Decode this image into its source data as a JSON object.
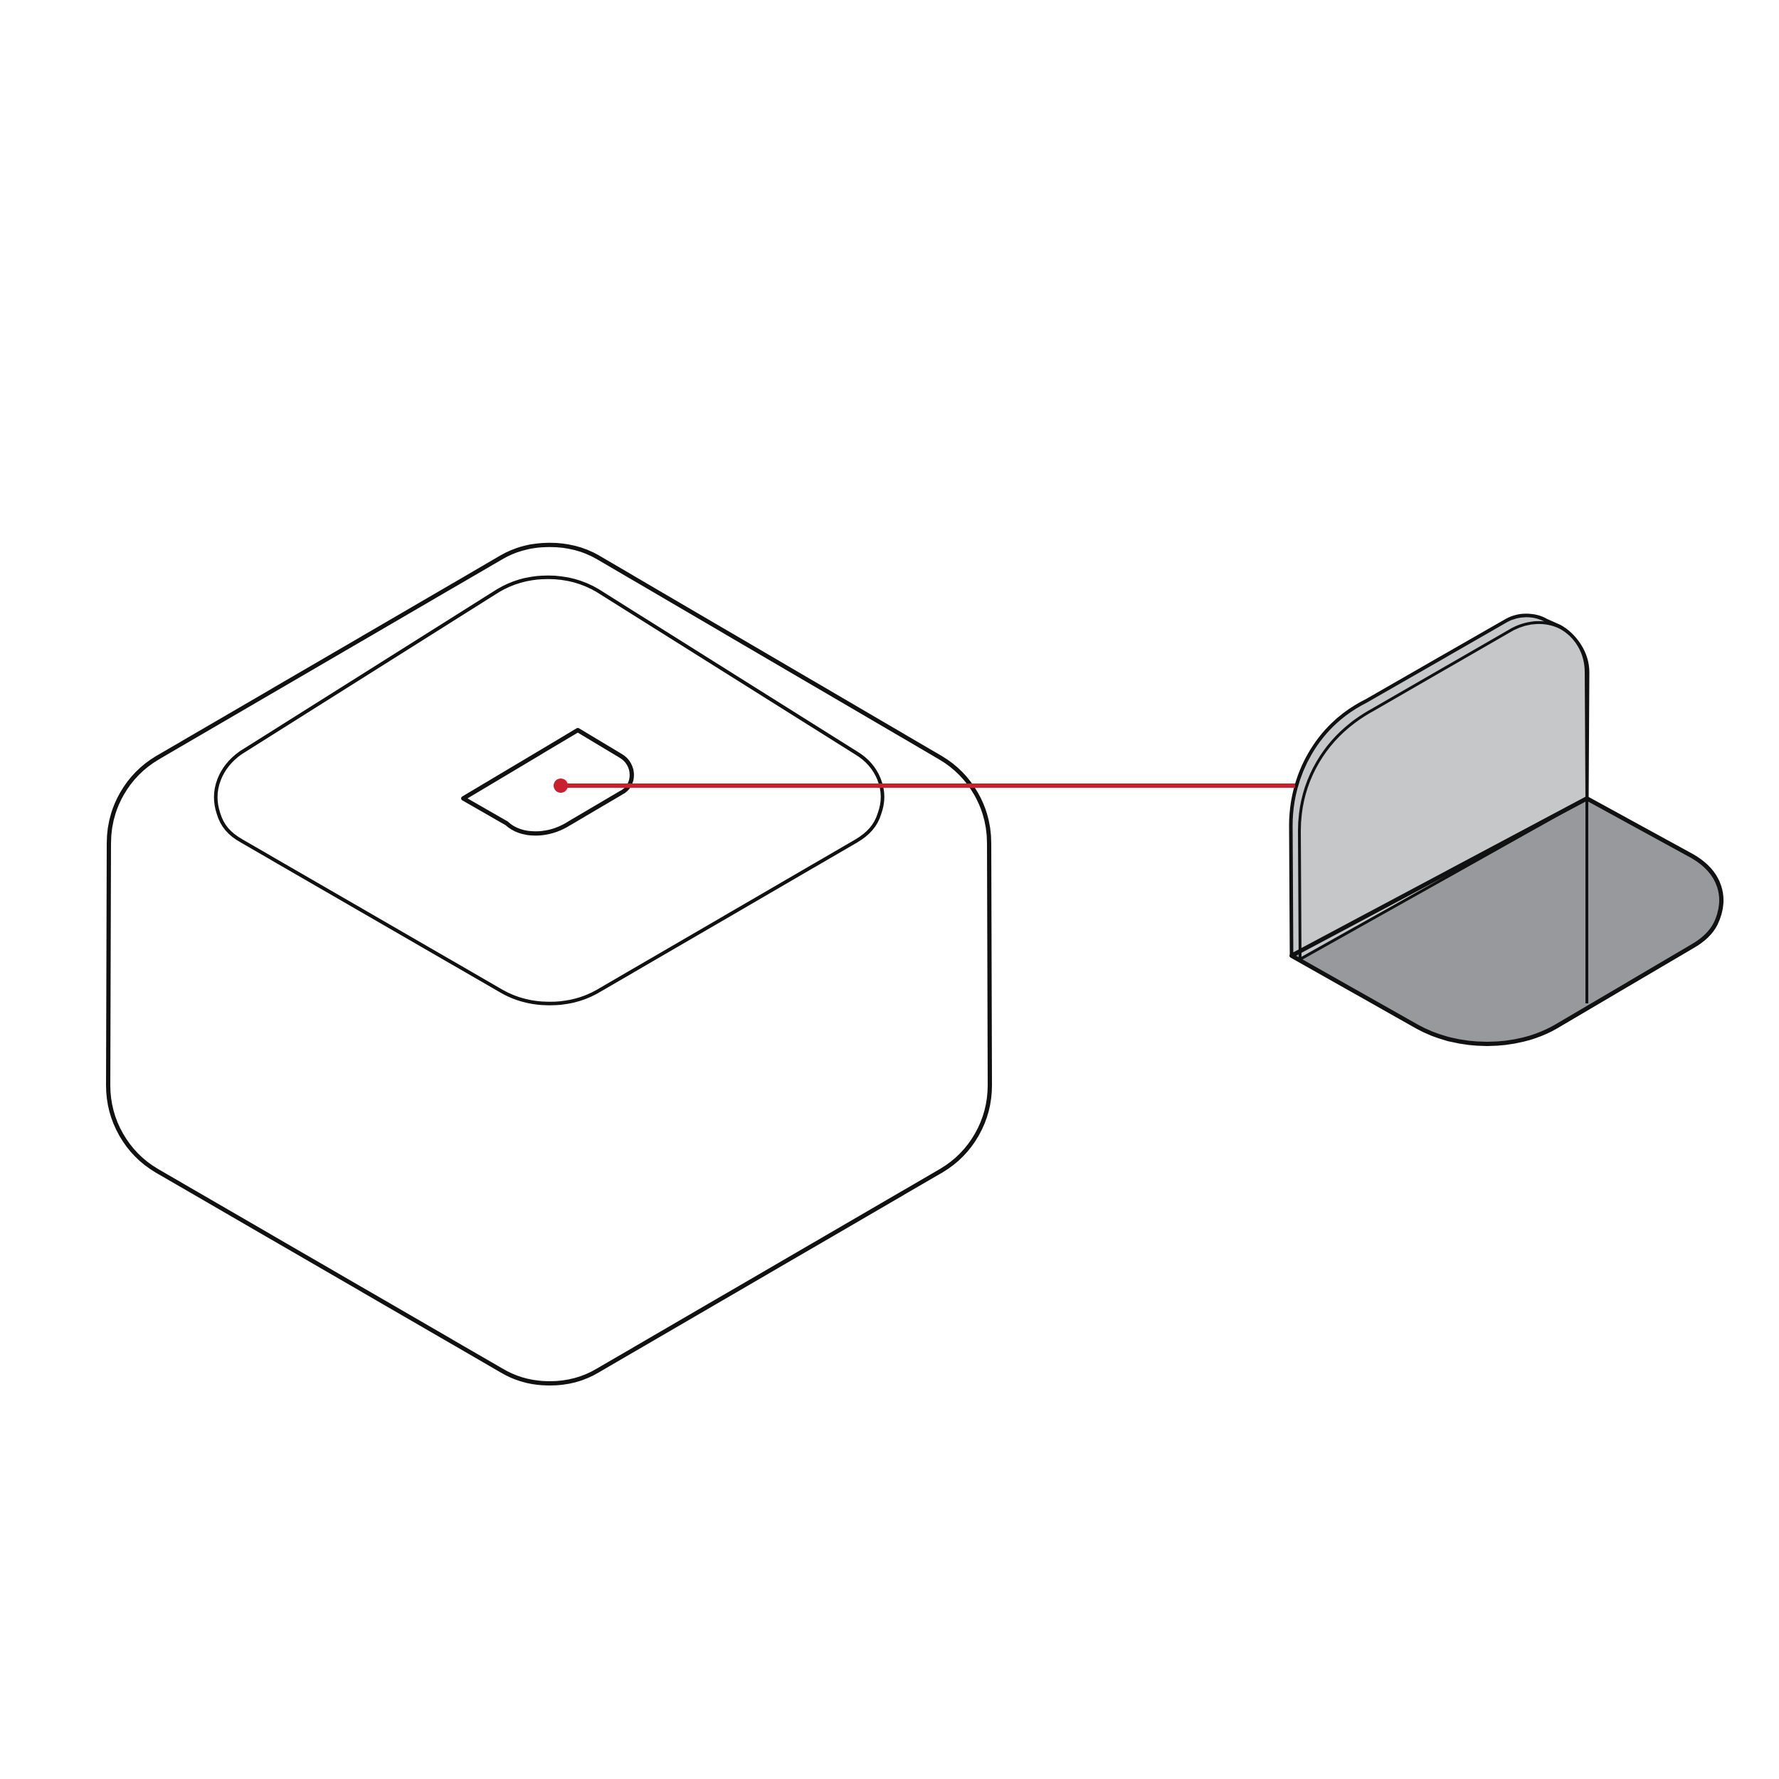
{
  "diagram": {
    "kind": "isometric-line-illustration",
    "colors": {
      "background": "#ffffff",
      "outline": "#111111",
      "pointer": "#c8202f",
      "wall_fill": "#c6c7c9",
      "floor_fill": "#98999d"
    },
    "parts": [
      "rounded-box",
      "lid-recess",
      "top-vent",
      "leader-line",
      "corner-detail"
    ]
  }
}
